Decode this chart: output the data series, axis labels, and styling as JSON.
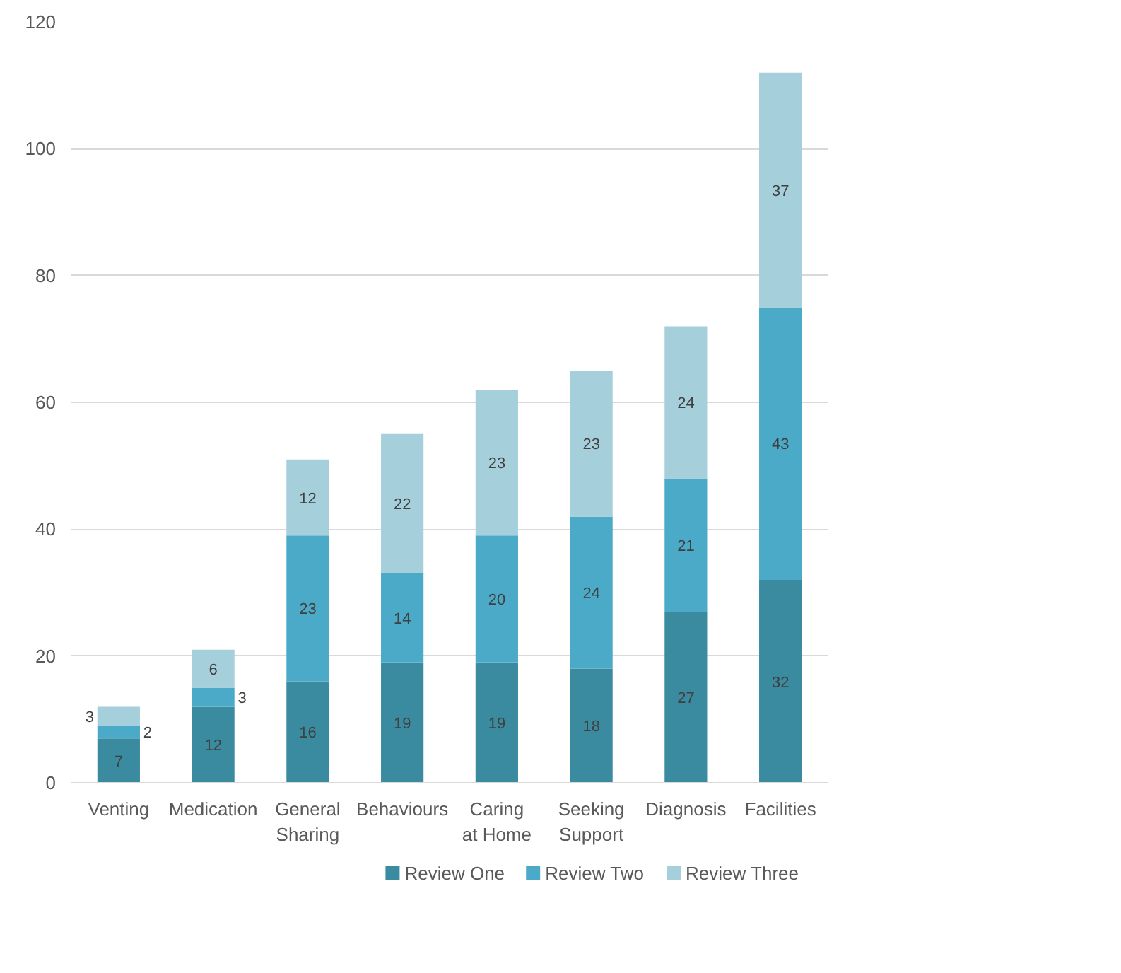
{
  "chart_data": {
    "type": "bar",
    "stacked": true,
    "categories": [
      "Venting",
      "Medication",
      "General Sharing",
      "Behaviours",
      "Caring at Home",
      "Seeking Support",
      "Diagnosis",
      "Facilities"
    ],
    "series": [
      {
        "name": "Review One",
        "color": "#3a8ba0",
        "values": [
          7,
          12,
          16,
          19,
          19,
          18,
          27,
          32
        ]
      },
      {
        "name": "Review Two",
        "color": "#4aaac8",
        "values": [
          2,
          3,
          23,
          14,
          20,
          24,
          21,
          43
        ]
      },
      {
        "name": "Review Three",
        "color": "#a6cfdc",
        "values": [
          3,
          6,
          12,
          22,
          23,
          23,
          24,
          37
        ]
      }
    ],
    "ylim": [
      0,
      120
    ],
    "yticks": [
      0,
      20,
      40,
      60,
      80,
      100,
      120
    ],
    "grid": "y",
    "legend": "bottom",
    "data_labels": true
  }
}
